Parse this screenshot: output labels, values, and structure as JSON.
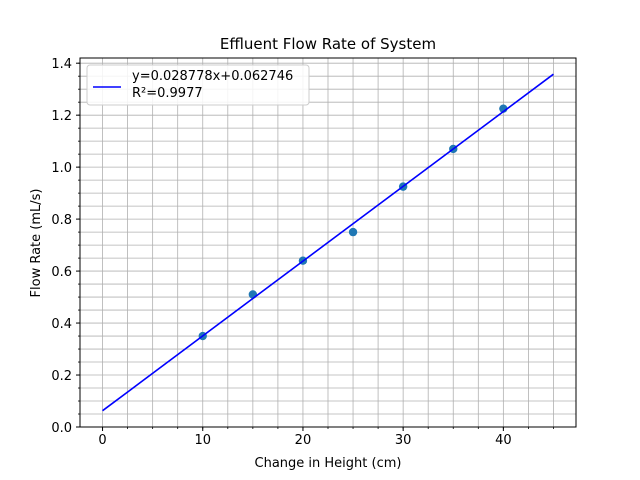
{
  "chart_data": {
    "type": "scatter",
    "title": "Effluent Flow Rate of System",
    "xlabel": "Change in Height (cm)",
    "ylabel": "Flow Rate (mL/s)",
    "xlim": [
      -2.25,
      47.25
    ],
    "ylim": [
      0,
      1.42
    ],
    "x_ticks": [
      0,
      10,
      20,
      30,
      40
    ],
    "x_tick_labels": [
      "0",
      "10",
      "20",
      "30",
      "40"
    ],
    "y_ticks": [
      0,
      0.2,
      0.4,
      0.6,
      0.8,
      1.0,
      1.2,
      1.4
    ],
    "y_tick_labels": [
      "0.0",
      "0.2",
      "0.4",
      "0.6",
      "0.8",
      "1.0",
      "1.2",
      "1.4"
    ],
    "grid": "major and minor",
    "legend_position": "top-left",
    "series": [
      {
        "kind": "points",
        "color": "#1f77b4",
        "x": [
          10,
          15,
          20,
          25,
          30,
          35,
          40
        ],
        "y": [
          0.35,
          0.51,
          0.64,
          0.75,
          0.925,
          1.07,
          1.225
        ]
      },
      {
        "kind": "line",
        "name_line1": "y=0.028778x+0.062746",
        "name_line2": "R²=0.9977",
        "color": "#0000ff",
        "slope": 0.028778,
        "intercept": 0.062746,
        "x_range": [
          0,
          45
        ]
      }
    ]
  }
}
